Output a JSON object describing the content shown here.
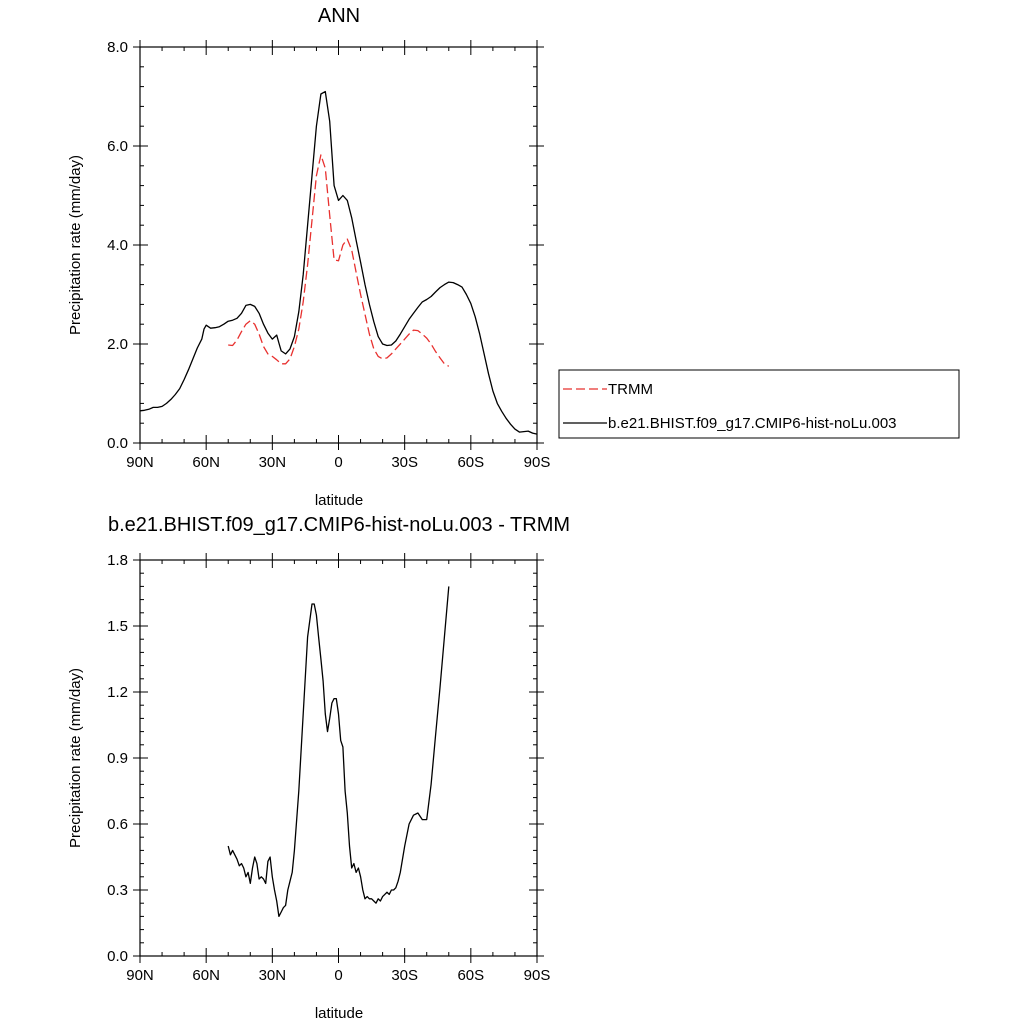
{
  "chart_data": [
    {
      "type": "line",
      "title": "ANN",
      "xlabel": "latitude",
      "ylabel": "Precipitation rate (mm/day)",
      "xlim": [
        90,
        -90
      ],
      "ylim": [
        0,
        8
      ],
      "x_ticks": [
        {
          "value": 90,
          "label": "90N"
        },
        {
          "value": 60,
          "label": "60N"
        },
        {
          "value": 30,
          "label": "30N"
        },
        {
          "value": 0,
          "label": "0"
        },
        {
          "value": -30,
          "label": "30S"
        },
        {
          "value": -60,
          "label": "60S"
        },
        {
          "value": -90,
          "label": "90S"
        }
      ],
      "y_ticks": [
        {
          "value": 0,
          "label": "0.0"
        },
        {
          "value": 2,
          "label": "2.0"
        },
        {
          "value": 4,
          "label": "4.0"
        },
        {
          "value": 6,
          "label": "6.0"
        },
        {
          "value": 8,
          "label": "8.0"
        }
      ],
      "legend": {
        "position": "right",
        "entries": [
          "TRMM",
          "b.e21.BHIST.f09_g17.CMIP6-hist-noLu.003"
        ]
      },
      "series": [
        {
          "name": "TRMM",
          "color": "#e8312f",
          "dash": "dashed",
          "x": [
            50,
            48,
            46,
            44,
            42,
            40,
            38,
            36,
            34,
            32,
            30,
            28,
            26,
            24,
            22,
            20,
            18,
            16,
            14,
            12,
            10,
            8,
            6,
            4,
            2,
            0,
            -2,
            -4,
            -6,
            -8,
            -10,
            -12,
            -14,
            -16,
            -18,
            -20,
            -22,
            -24,
            -26,
            -28,
            -30,
            -32,
            -34,
            -36,
            -38,
            -40,
            -42,
            -44,
            -46,
            -48,
            -50
          ],
          "y": [
            1.98,
            1.97,
            2.08,
            2.25,
            2.4,
            2.47,
            2.4,
            2.2,
            1.95,
            1.8,
            1.75,
            1.68,
            1.6,
            1.6,
            1.7,
            1.95,
            2.3,
            2.85,
            3.6,
            4.5,
            5.4,
            5.82,
            5.55,
            4.6,
            3.7,
            3.68,
            4.0,
            4.12,
            3.9,
            3.45,
            3.0,
            2.6,
            2.2,
            1.9,
            1.75,
            1.7,
            1.72,
            1.8,
            1.9,
            2.0,
            2.1,
            2.2,
            2.28,
            2.27,
            2.2,
            2.12,
            2.0,
            1.85,
            1.72,
            1.6,
            1.55
          ]
        },
        {
          "name": "b.e21.BHIST.f09_g17.CMIP6-hist-noLu.003",
          "color": "#000000",
          "dash": "solid",
          "x": [
            90,
            88,
            86,
            84,
            82,
            80,
            78,
            76,
            74,
            72,
            70,
            68,
            66,
            64,
            62,
            61,
            60,
            58,
            56,
            54,
            52,
            50,
            48,
            46,
            44,
            42,
            40,
            38,
            36,
            34,
            32,
            30,
            28,
            27,
            26,
            24,
            22,
            20,
            18,
            16,
            14,
            12,
            10,
            8,
            6,
            4,
            2,
            0,
            -2,
            -4,
            -6,
            -8,
            -10,
            -12,
            -14,
            -16,
            -18,
            -20,
            -22,
            -24,
            -26,
            -28,
            -30,
            -32,
            -34,
            -36,
            -38,
            -40,
            -42,
            -44,
            -46,
            -48,
            -50,
            -52,
            -54,
            -56,
            -58,
            -60,
            -62,
            -64,
            -66,
            -68,
            -70,
            -72,
            -74,
            -76,
            -78,
            -80,
            -82,
            -84,
            -86,
            -88,
            -90
          ],
          "y": [
            0.65,
            0.66,
            0.68,
            0.72,
            0.72,
            0.74,
            0.8,
            0.88,
            0.98,
            1.1,
            1.28,
            1.48,
            1.7,
            1.92,
            2.1,
            2.3,
            2.38,
            2.32,
            2.33,
            2.35,
            2.4,
            2.46,
            2.48,
            2.52,
            2.62,
            2.78,
            2.8,
            2.76,
            2.62,
            2.4,
            2.22,
            2.1,
            2.18,
            2.02,
            1.86,
            1.8,
            1.9,
            2.15,
            2.65,
            3.4,
            4.4,
            5.4,
            6.4,
            7.05,
            7.1,
            6.5,
            5.2,
            4.9,
            5.0,
            4.9,
            4.55,
            4.1,
            3.65,
            3.2,
            2.8,
            2.45,
            2.15,
            2.0,
            1.97,
            1.98,
            2.06,
            2.2,
            2.35,
            2.5,
            2.62,
            2.74,
            2.85,
            2.9,
            2.96,
            3.05,
            3.14,
            3.2,
            3.25,
            3.24,
            3.2,
            3.15,
            3.0,
            2.82,
            2.55,
            2.2,
            1.8,
            1.4,
            1.05,
            0.8,
            0.64,
            0.5,
            0.38,
            0.28,
            0.22,
            0.23,
            0.24,
            0.2,
            0.18
          ]
        }
      ]
    },
    {
      "type": "line",
      "title": "b.e21.BHIST.f09_g17.CMIP6-hist-noLu.003 - TRMM",
      "xlabel": "latitude",
      "ylabel": "Precipitation rate (mm/day)",
      "xlim": [
        90,
        -90
      ],
      "ylim": [
        0,
        1.8
      ],
      "x_ticks": [
        {
          "value": 90,
          "label": "90N"
        },
        {
          "value": 60,
          "label": "60N"
        },
        {
          "value": 30,
          "label": "30N"
        },
        {
          "value": 0,
          "label": "0"
        },
        {
          "value": -30,
          "label": "30S"
        },
        {
          "value": -60,
          "label": "60S"
        },
        {
          "value": -90,
          "label": "90S"
        }
      ],
      "y_ticks": [
        {
          "value": 0,
          "label": "0.0"
        },
        {
          "value": 0.3,
          "label": "0.3"
        },
        {
          "value": 0.6,
          "label": "0.6"
        },
        {
          "value": 0.9,
          "label": "0.9"
        },
        {
          "value": 1.2,
          "label": "1.2"
        },
        {
          "value": 1.5,
          "label": "1.5"
        },
        {
          "value": 1.8,
          "label": "1.8"
        }
      ],
      "series": [
        {
          "color": "#000000",
          "dash": "solid",
          "x": [
            50,
            49,
            48,
            47,
            46,
            45,
            44,
            43,
            42,
            41,
            40,
            39,
            38,
            37,
            36,
            35,
            34,
            33,
            32,
            31,
            30,
            29,
            28,
            27,
            26,
            25,
            24,
            23,
            22,
            21,
            20,
            18,
            16,
            14,
            12,
            11,
            10,
            9,
            8,
            7,
            6,
            5,
            4,
            3,
            2,
            1,
            0,
            -1,
            -2,
            -3,
            -4,
            -5,
            -6,
            -7,
            -8,
            -9,
            -10,
            -11,
            -12,
            -13,
            -14,
            -15,
            -16,
            -17,
            -18,
            -19,
            -20,
            -21,
            -22,
            -23,
            -24,
            -25,
            -26,
            -27,
            -28,
            -30,
            -32,
            -34,
            -36,
            -38,
            -40,
            -42,
            -44,
            -46,
            -48,
            -50
          ],
          "y": [
            0.5,
            0.46,
            0.48,
            0.46,
            0.44,
            0.41,
            0.42,
            0.4,
            0.36,
            0.38,
            0.33,
            0.4,
            0.45,
            0.42,
            0.35,
            0.36,
            0.35,
            0.33,
            0.43,
            0.45,
            0.36,
            0.3,
            0.25,
            0.18,
            0.2,
            0.22,
            0.23,
            0.3,
            0.34,
            0.38,
            0.48,
            0.75,
            1.1,
            1.45,
            1.6,
            1.6,
            1.55,
            1.45,
            1.35,
            1.25,
            1.1,
            1.02,
            1.08,
            1.15,
            1.17,
            1.17,
            1.1,
            0.98,
            0.95,
            0.75,
            0.65,
            0.5,
            0.4,
            0.42,
            0.38,
            0.4,
            0.36,
            0.3,
            0.26,
            0.27,
            0.26,
            0.26,
            0.25,
            0.24,
            0.26,
            0.25,
            0.27,
            0.28,
            0.29,
            0.28,
            0.3,
            0.3,
            0.31,
            0.34,
            0.38,
            0.5,
            0.6,
            0.64,
            0.65,
            0.62,
            0.62,
            0.78,
            1.0,
            1.22,
            1.45,
            1.68
          ]
        }
      ]
    }
  ]
}
